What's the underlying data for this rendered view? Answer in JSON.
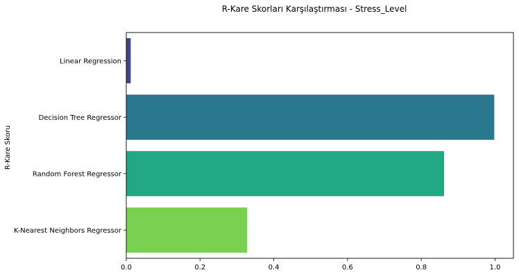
{
  "chart_data": {
    "type": "bar",
    "orientation": "horizontal",
    "title": "R-Kare Skorları Karşılaştırması - Stress_Level",
    "xlabel": "",
    "ylabel": "R-Kare Skoru",
    "categories": [
      "Linear Regression",
      "Decision Tree Regressor",
      "Random Forest Regressor",
      "K-Nearest Neighbors Regressor"
    ],
    "values": [
      0.012,
      0.998,
      0.862,
      0.328
    ],
    "colors": [
      "#414487",
      "#2a788e",
      "#22a884",
      "#7ad151"
    ],
    "xlim": [
      0,
      1.05
    ],
    "xticks": [
      0,
      0.2,
      0.4,
      0.6,
      0.8,
      1.0
    ],
    "xtick_labels": [
      "0.0",
      "0.2",
      "0.4",
      "0.6",
      "0.8",
      "1.0"
    ],
    "grid": false,
    "legend": "none"
  }
}
